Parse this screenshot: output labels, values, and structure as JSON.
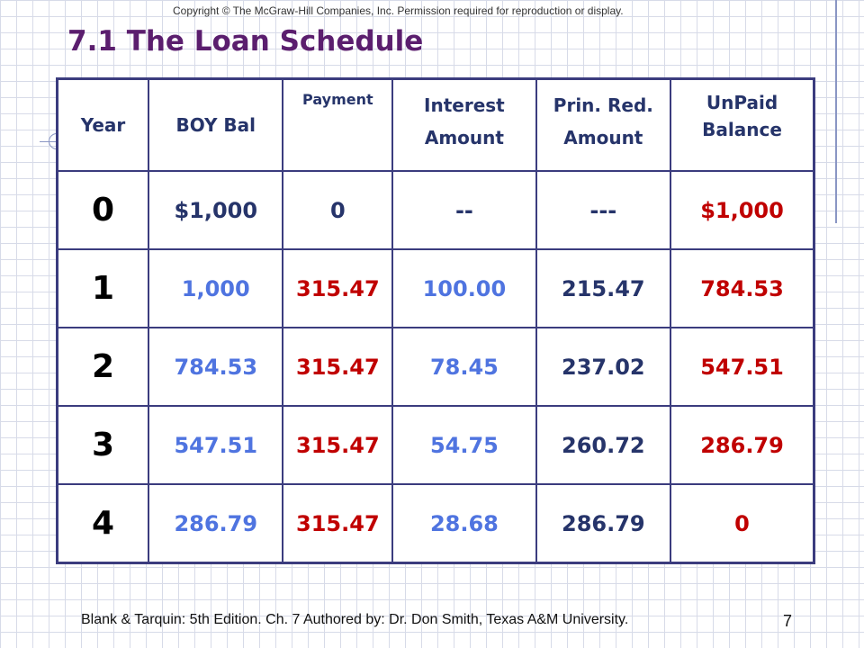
{
  "copyright": "Copyright © The McGraw-Hill Companies, Inc. Permission required for reproduction or display.",
  "title": "7.1 The Loan Schedule",
  "table": {
    "headers": [
      {
        "line1": "Year",
        "line2": ""
      },
      {
        "line1": "BOY Bal",
        "line2": ""
      },
      {
        "line1": "Payment",
        "line2": ""
      },
      {
        "line1": "Interest",
        "line2": "Amount"
      },
      {
        "line1": "Prin. Red.",
        "line2": "Amount"
      },
      {
        "line1": "UnPaid",
        "line2": "Balance"
      }
    ],
    "rows": [
      [
        "0",
        "$1,000",
        "0",
        "--",
        "---",
        "$1,000"
      ],
      [
        "1",
        "1,000",
        "315.47",
        "100.00",
        "215.47",
        "784.53"
      ],
      [
        "2",
        "784.53",
        "315.47",
        "78.45",
        "237.02",
        "547.51"
      ],
      [
        "3",
        "547.51",
        "315.47",
        "54.75",
        "260.72",
        "286.79"
      ],
      [
        "4",
        "286.79",
        "315.47",
        "28.68",
        "286.79",
        "0"
      ]
    ]
  },
  "footer": "Blank & Tarquin: 5th Edition. Ch. 7 Authored by: Dr. Don Smith, Texas A&M University.",
  "page_number": "7",
  "colors": {
    "title": "#5b1e6e",
    "header_text": "#26346a",
    "table_border": "#3b3c7e",
    "value_red": "#c00000",
    "value_blue": "#4f74e0",
    "value_navy": "#26346a"
  }
}
